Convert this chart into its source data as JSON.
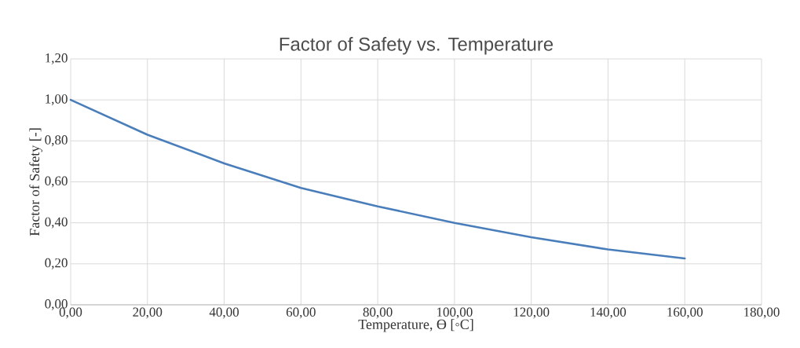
{
  "chart_data": {
    "type": "line",
    "title": "Factor of Safety vs. Temperature",
    "xlabel": "Temperature, ϴ [◦C]",
    "ylabel": "Factor of Safety [-]",
    "x": [
      0,
      20,
      40,
      60,
      80,
      100,
      120,
      140,
      160
    ],
    "series": [
      {
        "color": "#4a7ebb",
        "values": [
          1.0,
          0.83,
          0.69,
          0.57,
          0.48,
          0.4,
          0.33,
          0.27,
          0.226
        ]
      }
    ],
    "xlim": [
      0,
      180
    ],
    "xticks": [
      {
        "value": 0,
        "label": "0,00"
      },
      {
        "value": 20,
        "label": "20,00"
      },
      {
        "value": 40,
        "label": "40,00"
      },
      {
        "value": 60,
        "label": "60,00"
      },
      {
        "value": 80,
        "label": "80,00"
      },
      {
        "value": 100,
        "label": "100,00"
      },
      {
        "value": 120,
        "label": "120,00"
      },
      {
        "value": 140,
        "label": "140,00"
      },
      {
        "value": 160,
        "label": "160,00"
      },
      {
        "value": 180,
        "label": "180,00"
      }
    ],
    "ylim": [
      0,
      1.2
    ],
    "yticks": [
      {
        "value": 0,
        "label": "0,00"
      },
      {
        "value": 0.2,
        "label": "0,20"
      },
      {
        "value": 0.4,
        "label": "0,40"
      },
      {
        "value": 0.6,
        "label": "0,60"
      },
      {
        "value": 0.8,
        "label": "0,80"
      },
      {
        "value": 1.0,
        "label": "1,00"
      },
      {
        "value": 1.2,
        "label": "1,20"
      }
    ],
    "grid": true,
    "marker": "none",
    "line_style": "solid"
  }
}
